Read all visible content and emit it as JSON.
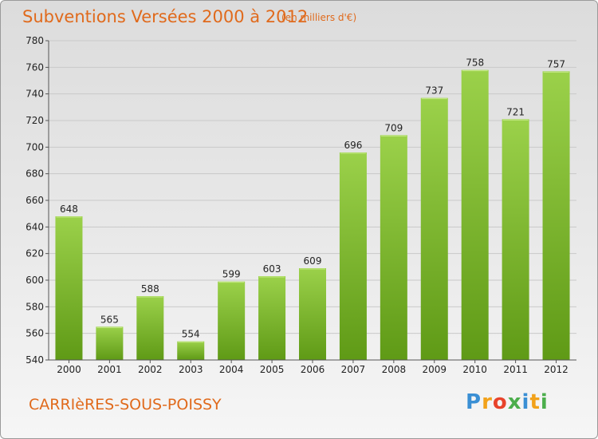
{
  "title": "Subventions Versées 2000 à 2012",
  "subtitle": "(en milliers d'€)",
  "commune": "CARRIèRES-SOUS-POISSY",
  "logo": {
    "letters": [
      "P",
      "r",
      "o",
      "x",
      "i",
      "t",
      "i"
    ],
    "colors": [
      "#3a8fd4",
      "#f2a21b",
      "#e8432b",
      "#4cae4c",
      "#3a8fd4",
      "#f2a21b",
      "#4cae4c"
    ]
  },
  "colors": {
    "bar_top": "#9bd14a",
    "bar_bottom": "#5f9a16",
    "accent": "#e06a1c"
  },
  "chart_data": {
    "type": "bar",
    "categories": [
      "2000",
      "2001",
      "2002",
      "2003",
      "2004",
      "2005",
      "2006",
      "2007",
      "2008",
      "2009",
      "2010",
      "2011",
      "2012"
    ],
    "values": [
      648,
      565,
      588,
      554,
      599,
      603,
      609,
      696,
      709,
      737,
      758,
      721,
      757
    ],
    "title": "Subventions Versées 2000 à 2012",
    "ylim": [
      540,
      780
    ],
    "yticks": [
      540,
      560,
      580,
      600,
      620,
      640,
      660,
      680,
      700,
      720,
      740,
      760,
      780
    ],
    "grid": true,
    "data_labels": true
  }
}
